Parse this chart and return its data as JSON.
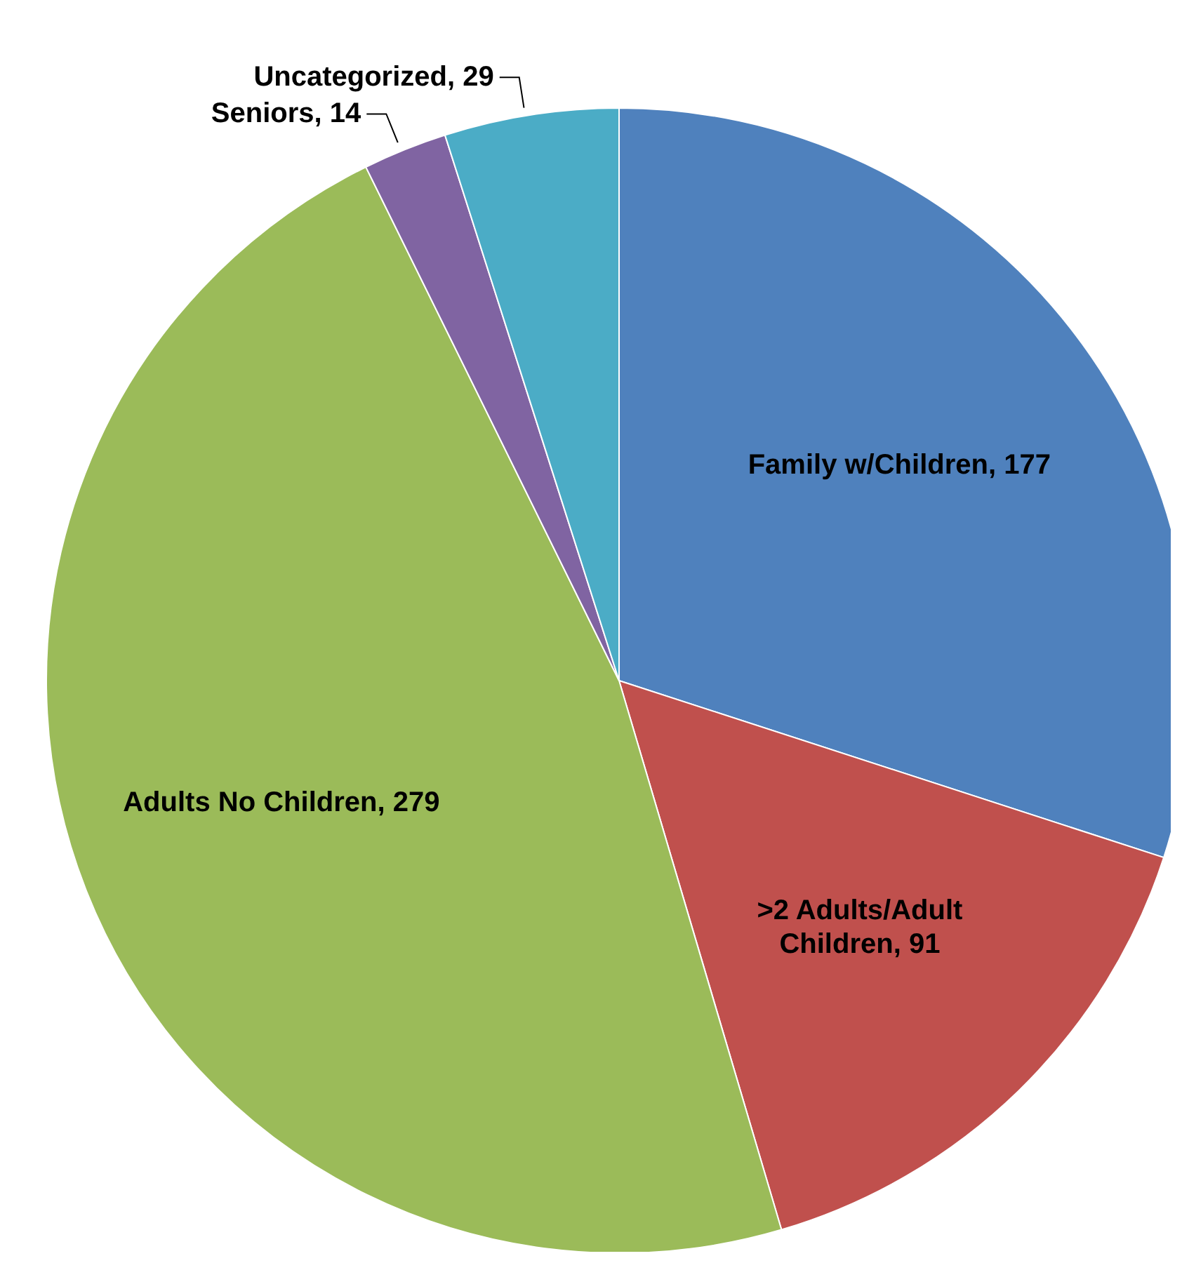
{
  "chart_data": {
    "type": "pie",
    "categories": [
      "Family w/Children",
      ">2 Adults/Adult Children",
      "Adults No Children",
      "Seniors",
      "Uncategorized"
    ],
    "values": [
      177,
      91,
      279,
      14,
      29
    ],
    "colors": [
      "#4f81bd",
      "#c0504d",
      "#9bbb59",
      "#8064a2",
      "#4bacc6"
    ],
    "value_labels": [
      ", 177",
      ", 91",
      ", 279",
      ", 14",
      ", 29"
    ]
  }
}
